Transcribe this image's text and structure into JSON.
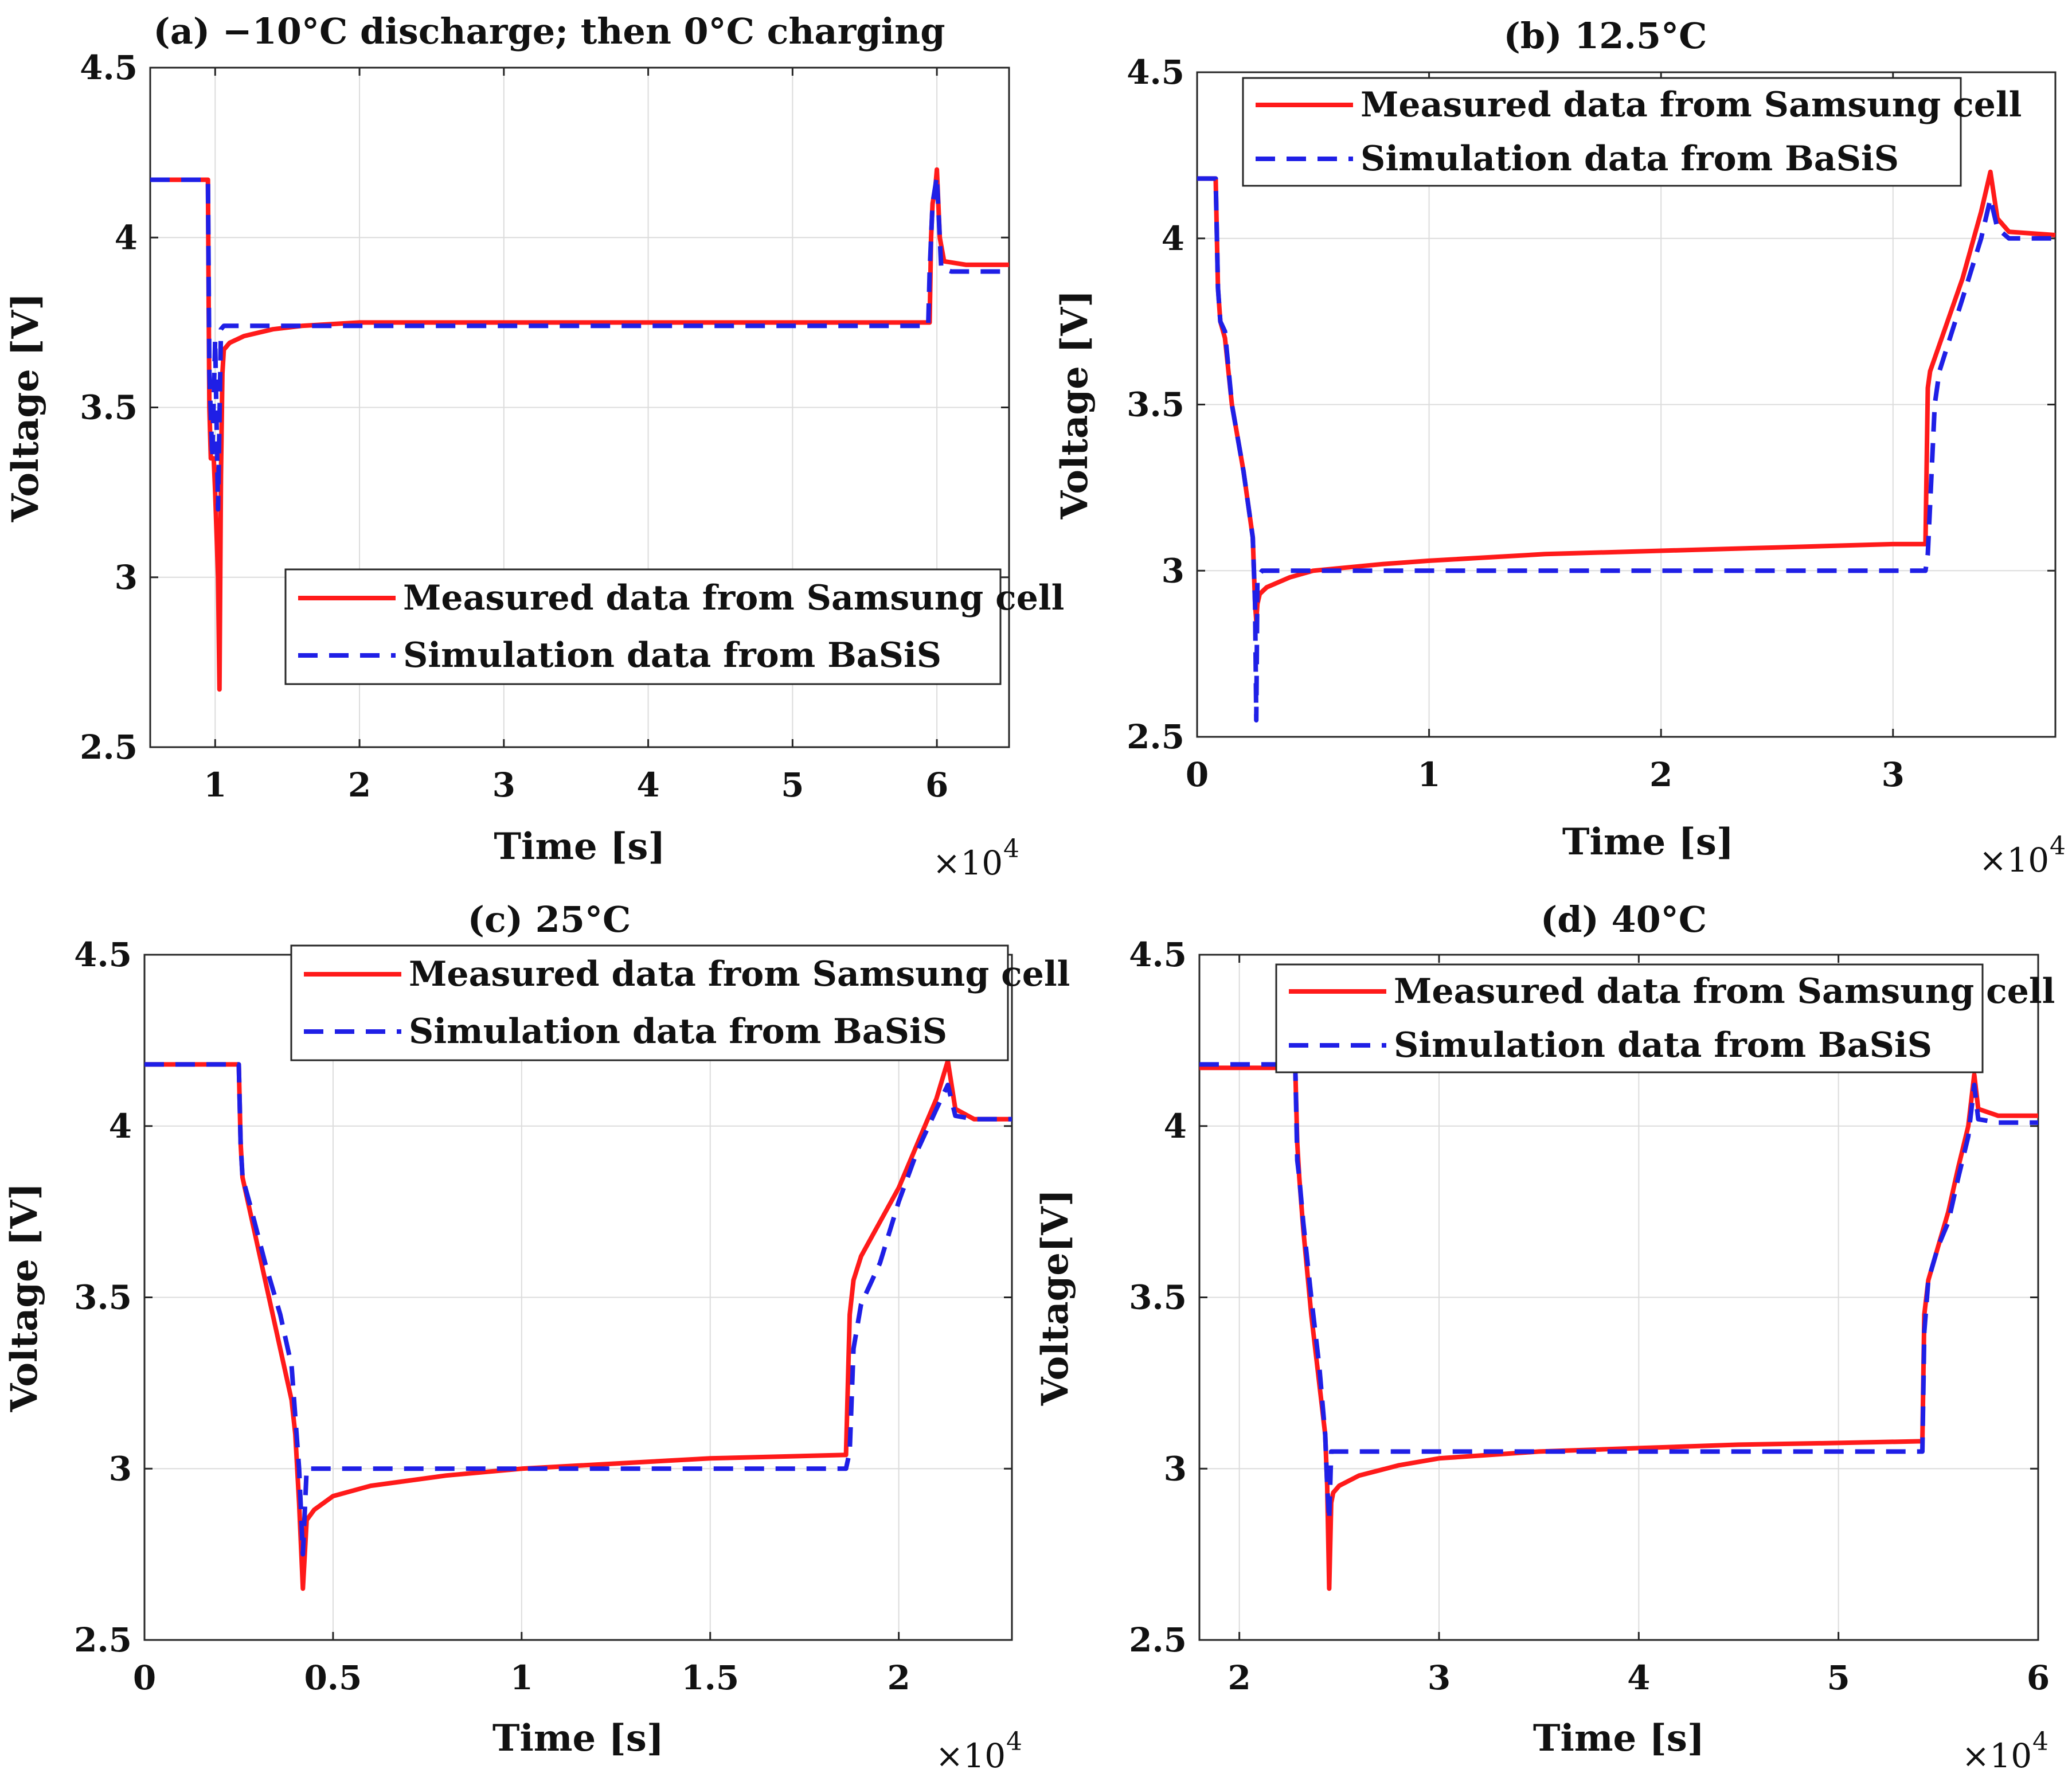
{
  "colors": {
    "measured": "#ff1a1a",
    "simulated": "#1f1fe6"
  },
  "chart_data": [
    {
      "type": "line",
      "title": "(a) −10°C discharge; then 0°C charging",
      "xlabel": "Time [s]",
      "ylabel": "Voltage [V]",
      "x_multiplier": "×10",
      "x_multiplier_exp": "4",
      "xlim": [
        0.55,
        6.5
      ],
      "ylim": [
        2.5,
        4.5
      ],
      "xticks": [
        1,
        2,
        3,
        4,
        5,
        6
      ],
      "xtick_labels": [
        "1",
        "2",
        "3",
        "4",
        "5",
        "6"
      ],
      "yticks": [
        2.5,
        3,
        3.5,
        4,
        4.5
      ],
      "ytick_labels": [
        "2.5",
        "3",
        "3.5",
        "4",
        "4.5"
      ],
      "grid": true,
      "legend_position": "lower-right",
      "series": [
        {
          "name": "Measured data from Samsung cell",
          "style": "solid",
          "x": [
            0.55,
            0.95,
            0.955,
            0.96,
            0.97,
            0.99,
            1.0,
            1.02,
            1.03,
            1.04,
            1.05,
            1.06,
            1.1,
            1.2,
            1.4,
            1.6,
            2.0,
            3.0,
            4.0,
            5.0,
            5.95,
            5.96,
            5.97,
            5.99,
            6.0,
            6.02,
            6.05,
            6.2,
            6.5
          ],
          "y": [
            4.17,
            4.17,
            3.8,
            3.5,
            3.35,
            3.35,
            3.25,
            3.0,
            2.67,
            3.3,
            3.6,
            3.67,
            3.69,
            3.71,
            3.73,
            3.74,
            3.75,
            3.75,
            3.75,
            3.75,
            3.75,
            4.0,
            4.1,
            4.15,
            4.2,
            4.0,
            3.93,
            3.92,
            3.92
          ]
        },
        {
          "name": "Simulation data from BaSiS",
          "style": "dashed",
          "x": [
            0.55,
            0.95,
            0.96,
            0.98,
            1.0,
            1.02,
            1.04,
            1.06,
            1.1,
            1.5,
            2.0,
            3.0,
            4.0,
            5.0,
            5.94,
            5.95,
            5.97,
            6.0,
            6.03,
            6.1,
            6.5
          ],
          "y": [
            4.17,
            4.17,
            3.6,
            3.35,
            3.7,
            3.2,
            3.73,
            3.74,
            3.74,
            3.74,
            3.74,
            3.74,
            3.74,
            3.74,
            3.74,
            3.9,
            4.1,
            4.18,
            3.91,
            3.9,
            3.9
          ]
        }
      ]
    },
    {
      "type": "line",
      "title": "(b) 12.5°C",
      "xlabel": "Time [s]",
      "ylabel": "Voltage [V]",
      "x_multiplier": "×10",
      "x_multiplier_exp": "4",
      "xlim": [
        0,
        3.7
      ],
      "ylim": [
        2.5,
        4.5
      ],
      "xticks": [
        0,
        1,
        2,
        3
      ],
      "xtick_labels": [
        "0",
        "1",
        "2",
        "3"
      ],
      "yticks": [
        2.5,
        3,
        3.5,
        4,
        4.5
      ],
      "ytick_labels": [
        "2.5",
        "3",
        "3.5",
        "4",
        "4.5"
      ],
      "grid": true,
      "legend_position": "top-right",
      "series": [
        {
          "name": "Measured data from Samsung cell",
          "style": "solid",
          "x": [
            0,
            0.08,
            0.09,
            0.1,
            0.12,
            0.15,
            0.2,
            0.24,
            0.25,
            0.255,
            0.26,
            0.27,
            0.3,
            0.4,
            0.5,
            0.8,
            1.0,
            1.5,
            2.0,
            2.5,
            3.0,
            3.14,
            3.15,
            3.16,
            3.2,
            3.3,
            3.38,
            3.42,
            3.45,
            3.5,
            3.7
          ],
          "y": [
            4.18,
            4.18,
            3.85,
            3.75,
            3.7,
            3.5,
            3.3,
            3.1,
            2.9,
            2.85,
            2.9,
            2.93,
            2.95,
            2.98,
            3.0,
            3.02,
            3.03,
            3.05,
            3.06,
            3.07,
            3.08,
            3.08,
            3.55,
            3.6,
            3.68,
            3.88,
            4.08,
            4.2,
            4.06,
            4.02,
            4.01
          ]
        },
        {
          "name": "Simulation data from BaSiS",
          "style": "dashed",
          "x": [
            0,
            0.08,
            0.09,
            0.1,
            0.12,
            0.15,
            0.2,
            0.24,
            0.25,
            0.255,
            0.26,
            0.28,
            0.5,
            1.0,
            2.0,
            3.0,
            3.14,
            3.15,
            3.18,
            3.2,
            3.3,
            3.38,
            3.42,
            3.45,
            3.5,
            3.7
          ],
          "y": [
            4.18,
            4.18,
            3.85,
            3.75,
            3.72,
            3.5,
            3.3,
            3.1,
            2.9,
            2.55,
            2.98,
            3.0,
            3.0,
            3.0,
            3.0,
            3.0,
            3.0,
            3.05,
            3.5,
            3.6,
            3.82,
            4.0,
            4.12,
            4.03,
            4.0,
            4.0
          ]
        }
      ]
    },
    {
      "type": "line",
      "title": "(c)  25°C",
      "xlabel": "Time [s]",
      "ylabel": "Voltage [V]",
      "x_multiplier": "×10",
      "x_multiplier_exp": "4",
      "xlim": [
        0,
        2.3
      ],
      "ylim": [
        2.5,
        4.5
      ],
      "xticks": [
        0,
        0.5,
        1,
        1.5,
        2
      ],
      "xtick_labels": [
        "0",
        "0.5",
        "1",
        "1.5",
        "2"
      ],
      "yticks": [
        2.5,
        3,
        3.5,
        4,
        4.5
      ],
      "ytick_labels": [
        "2.5",
        "3",
        "3.5",
        "4",
        "4.5"
      ],
      "grid": true,
      "legend_position": "top-right",
      "series": [
        {
          "name": "Measured data from Samsung cell",
          "style": "solid",
          "x": [
            0,
            0.25,
            0.255,
            0.26,
            0.28,
            0.32,
            0.36,
            0.39,
            0.4,
            0.41,
            0.42,
            0.43,
            0.45,
            0.5,
            0.6,
            0.8,
            1.0,
            1.5,
            1.86,
            1.87,
            1.88,
            1.9,
            1.95,
            2.0,
            2.05,
            2.1,
            2.13,
            2.15,
            2.2,
            2.3
          ],
          "y": [
            4.18,
            4.18,
            3.95,
            3.85,
            3.75,
            3.55,
            3.35,
            3.2,
            3.1,
            2.9,
            2.65,
            2.85,
            2.88,
            2.92,
            2.95,
            2.98,
            3.0,
            3.03,
            3.04,
            3.45,
            3.55,
            3.62,
            3.72,
            3.82,
            3.95,
            4.08,
            4.19,
            4.05,
            4.02,
            4.02
          ]
        },
        {
          "name": "Simulation data from BaSiS",
          "style": "dashed",
          "x": [
            0,
            0.25,
            0.255,
            0.26,
            0.28,
            0.32,
            0.36,
            0.39,
            0.4,
            0.41,
            0.42,
            0.43,
            0.5,
            1.0,
            1.5,
            1.86,
            1.87,
            1.88,
            1.9,
            1.95,
            2.0,
            2.05,
            2.1,
            2.13,
            2.15,
            2.2,
            2.3
          ],
          "y": [
            4.18,
            4.18,
            3.95,
            3.85,
            3.77,
            3.6,
            3.45,
            3.3,
            3.15,
            3.0,
            2.75,
            3.0,
            3.0,
            3.0,
            3.0,
            3.0,
            3.05,
            3.35,
            3.48,
            3.6,
            3.78,
            3.93,
            4.05,
            4.12,
            4.03,
            4.02,
            4.02
          ]
        }
      ]
    },
    {
      "type": "line",
      "title": "(d)  40°C",
      "xlabel": "Time [s]",
      "ylabel": "Voltage[V]",
      "x_multiplier": "×10",
      "x_multiplier_exp": "4",
      "xlim": [
        1.8,
        6.0
      ],
      "ylim": [
        2.5,
        4.5
      ],
      "xticks": [
        2,
        3,
        4,
        5,
        6
      ],
      "xtick_labels": [
        "2",
        "3",
        "4",
        "5",
        "6"
      ],
      "yticks": [
        2.5,
        3,
        3.5,
        4,
        4.5
      ],
      "ytick_labels": [
        "2.5",
        "3",
        "3.5",
        "4",
        "4.5"
      ],
      "grid": true,
      "legend_position": "top-right",
      "series": [
        {
          "name": "Measured data from Samsung cell",
          "style": "solid",
          "x": [
            1.8,
            2.28,
            2.29,
            2.3,
            2.32,
            2.36,
            2.4,
            2.43,
            2.44,
            2.45,
            2.46,
            2.47,
            2.5,
            2.6,
            2.8,
            3.0,
            3.5,
            4.0,
            4.5,
            5.0,
            5.42,
            5.43,
            5.45,
            5.5,
            5.55,
            5.6,
            5.65,
            5.68,
            5.7,
            5.8,
            6.0
          ],
          "y": [
            4.17,
            4.17,
            3.95,
            3.85,
            3.7,
            3.45,
            3.25,
            3.1,
            2.95,
            2.65,
            2.9,
            2.93,
            2.95,
            2.98,
            3.01,
            3.03,
            3.05,
            3.06,
            3.07,
            3.075,
            3.08,
            3.45,
            3.55,
            3.65,
            3.75,
            3.88,
            4.0,
            4.15,
            4.05,
            4.03,
            4.03
          ]
        },
        {
          "name": "Simulation data from BaSiS",
          "style": "dashed",
          "x": [
            1.8,
            2.28,
            2.29,
            2.3,
            2.32,
            2.36,
            2.4,
            2.43,
            2.44,
            2.45,
            2.46,
            2.47,
            3.0,
            4.0,
            5.0,
            5.42,
            5.43,
            5.45,
            5.5,
            5.55,
            5.6,
            5.65,
            5.68,
            5.7,
            5.8,
            6.0
          ],
          "y": [
            4.18,
            4.18,
            3.9,
            3.85,
            3.72,
            3.5,
            3.3,
            3.1,
            2.95,
            2.85,
            3.05,
            3.05,
            3.05,
            3.05,
            3.05,
            3.05,
            3.4,
            3.55,
            3.65,
            3.72,
            3.85,
            3.97,
            4.12,
            4.02,
            4.01,
            4.01
          ]
        }
      ]
    }
  ]
}
